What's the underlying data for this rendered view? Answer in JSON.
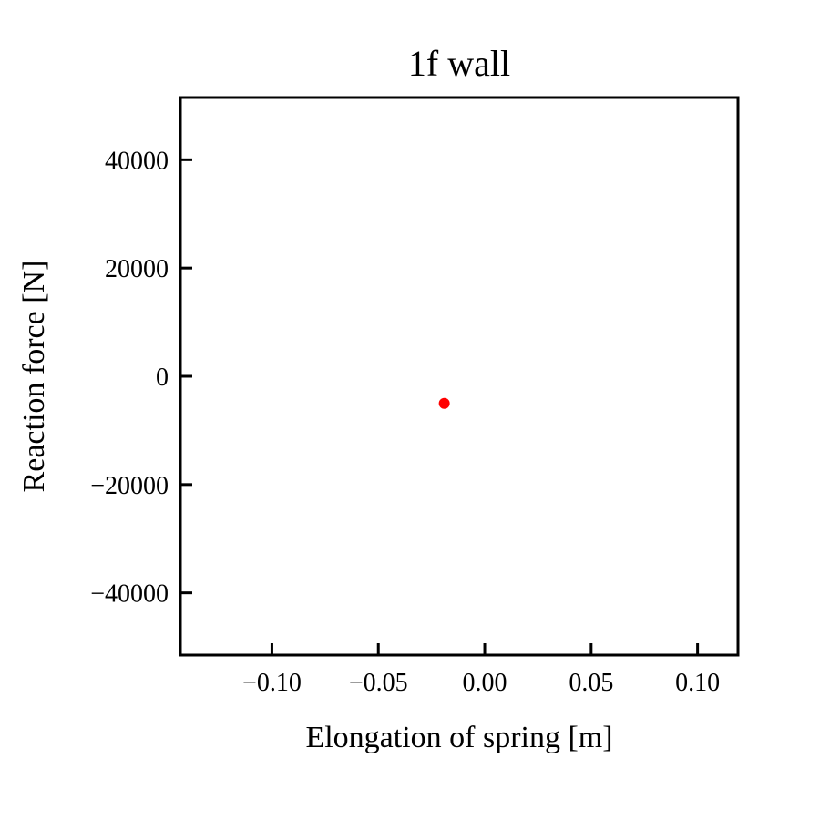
{
  "chart_data": {
    "type": "scatter",
    "title": "1f wall",
    "xlabel": "Elongation of spring [m]",
    "ylabel": "Reaction force [N]",
    "xlim": [
      -0.143,
      0.119
    ],
    "ylim": [
      -51500,
      51500
    ],
    "x_ticks": [
      -0.1,
      -0.05,
      0.0,
      0.05,
      0.1
    ],
    "x_tick_labels": [
      "−0.10",
      "−0.05",
      "0.00",
      "0.05",
      "0.10"
    ],
    "y_ticks": [
      40000,
      20000,
      0,
      -20000,
      -40000
    ],
    "y_tick_labels": [
      "40000",
      "20000",
      "0",
      "−20000",
      "−40000"
    ],
    "grid": false,
    "series": [
      {
        "color": "#ff0000",
        "points": [
          {
            "x": -0.019,
            "y": -5000
          }
        ]
      }
    ]
  }
}
